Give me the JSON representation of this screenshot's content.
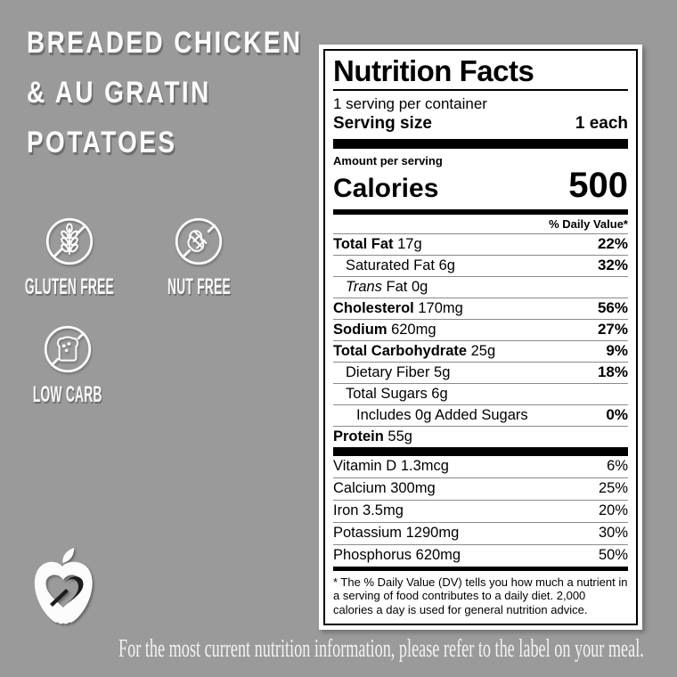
{
  "title": {
    "line1": "BREADED CHICKEN",
    "line2": "& AU GRATIN",
    "line3": "POTATOES"
  },
  "badges": [
    {
      "label": "GLUTEN FREE",
      "icon": "wheat-crossed-icon"
    },
    {
      "label": "NUT FREE",
      "icon": "peanut-crossed-icon"
    },
    {
      "label": "LOW CARB",
      "icon": "bread-crossed-icon"
    }
  ],
  "logo": {
    "name": "apple-heart-logo"
  },
  "footer": {
    "text": "For the most current nutrition information, please refer to the label on your meal."
  },
  "colors": {
    "background": "#9a9a9a",
    "card": "#ffffff",
    "ink": "#000000",
    "hairline": "#8a8a8a",
    "light_text": "#fcfcfc"
  },
  "nutrition": {
    "title": "Nutrition Facts",
    "servings_per_container": "1 serving per container",
    "serving_size_label": "Serving size",
    "serving_size_value": "1 each",
    "amount_per_serving_label": "Amount per serving",
    "calories_label": "Calories",
    "calories_value": "500",
    "daily_value_header": "% Daily Value*",
    "main_rows": [
      {
        "name": "Total Fat",
        "amount": "17g",
        "dv": "22%",
        "name_bold": true,
        "dv_bold": true,
        "indent": 0
      },
      {
        "name": "Saturated Fat",
        "amount": "6g",
        "dv": "32%",
        "name_bold": false,
        "dv_bold": true,
        "indent": 1
      },
      {
        "name": "Fat",
        "italic_prefix": "Trans",
        "amount": "0g",
        "dv": "",
        "name_bold": false,
        "dv_bold": false,
        "indent": 1
      },
      {
        "name": "Cholesterol",
        "amount": "170mg",
        "dv": "56%",
        "name_bold": true,
        "dv_bold": true,
        "indent": 0
      },
      {
        "name": "Sodium",
        "amount": "620mg",
        "dv": "27%",
        "name_bold": true,
        "dv_bold": true,
        "indent": 0
      },
      {
        "name": "Total Carbohydrate",
        "amount": "25g",
        "dv": "9%",
        "name_bold": true,
        "dv_bold": true,
        "indent": 0
      },
      {
        "name": "Dietary Fiber",
        "amount": "5g",
        "dv": "18%",
        "name_bold": false,
        "dv_bold": true,
        "indent": 1
      },
      {
        "name": "Total Sugars",
        "amount": "6g",
        "dv": "",
        "name_bold": false,
        "dv_bold": false,
        "indent": 1
      },
      {
        "name": "Includes 0g Added Sugars",
        "amount": "",
        "dv": "0%",
        "name_bold": false,
        "dv_bold": true,
        "indent": 2
      },
      {
        "name": "Protein",
        "amount": "55g",
        "dv": "",
        "name_bold": true,
        "dv_bold": false,
        "indent": 0
      }
    ],
    "vitamin_rows": [
      {
        "name": "Vitamin D",
        "amount": "1.3mcg",
        "dv": "6%"
      },
      {
        "name": "Calcium",
        "amount": "300mg",
        "dv": "25%"
      },
      {
        "name": "Iron",
        "amount": "3.5mg",
        "dv": "20%"
      },
      {
        "name": "Potassium",
        "amount": "1290mg",
        "dv": "30%"
      },
      {
        "name": "Phosphorus",
        "amount": "620mg",
        "dv": "50%"
      }
    ],
    "footnote": "* The % Daily Value (DV) tells you how much a nutrient in a serving of food contributes to a daily diet. 2,000 calories a day is used for general nutrition advice."
  }
}
